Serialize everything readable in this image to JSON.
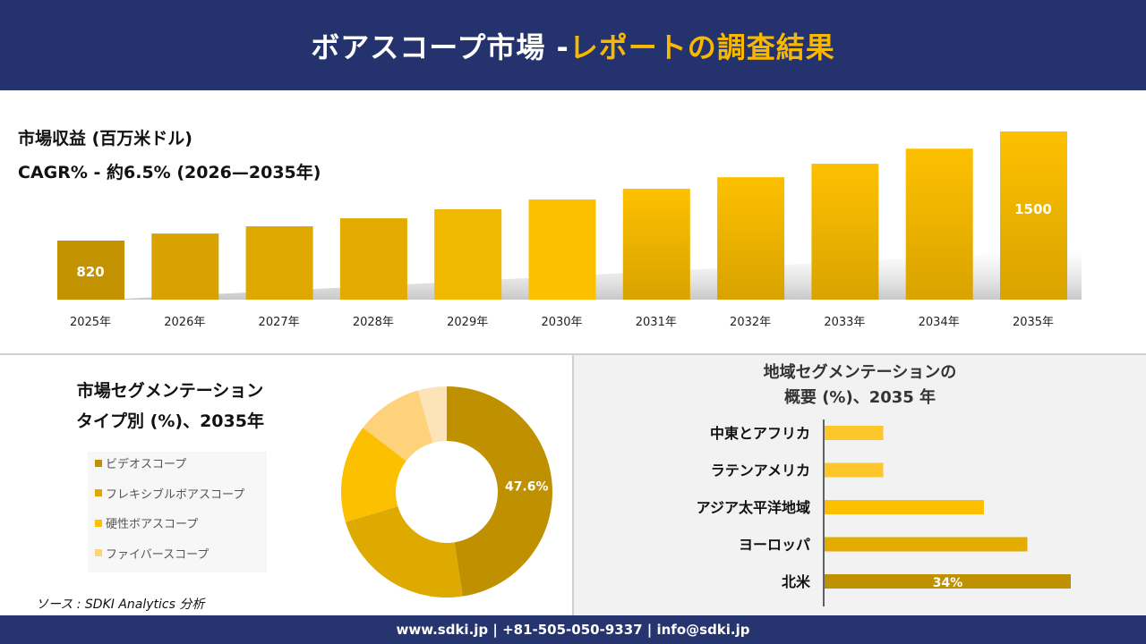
{
  "header": {
    "title_main": "ボアスコープ市場 -",
    "title_accent": "レポートの調査結果"
  },
  "colors": {
    "navy": "#24336d",
    "accent": "#f9b800"
  },
  "revenue": {
    "title": "市場収益 (百万米ドル)",
    "cagr": "CAGR% - 約6.5% (2026—2035年)"
  },
  "chart_data": [
    {
      "type": "bar",
      "title": "市場収益 (百万米ドル)",
      "categories": [
        "2025年",
        "2026年",
        "2027年",
        "2028年",
        "2029年",
        "2030年",
        "2031年",
        "2032年",
        "2033年",
        "2034年",
        "2035年"
      ],
      "values": [
        820,
        864,
        909,
        959,
        1015,
        1076,
        1143,
        1215,
        1299,
        1393,
        1500
      ],
      "data_labels": {
        "2025年": "820",
        "2035年": "1500"
      },
      "ylim": [
        450,
        1500
      ],
      "grid": false,
      "colors": [
        "#c29200",
        "#d8a200",
        "#dea800",
        "#e3ab00",
        "#f0b800",
        "#fdc000",
        "#f5b900",
        "#f5b900",
        "#f5b900",
        "#f5b900",
        "#f5b900"
      ]
    },
    {
      "type": "pie",
      "donut": true,
      "title": "市場セグメンテーション タイプ別 (%)、2035年",
      "labels": [
        "ビデオスコープ",
        "フレキシブルボアスコープ",
        "硬性ボアスコープ",
        "ファイバースコープ",
        ""
      ],
      "values": [
        47.6,
        22.8,
        15.0,
        10.2,
        4.4
      ],
      "data_labels": [
        "47.6%",
        "",
        "",
        "",
        ""
      ],
      "colors": [
        "#bf9000",
        "#deaa00",
        "#fcc000",
        "#fdd27a",
        "#fde3b8"
      ],
      "legend": "left"
    },
    {
      "type": "bar",
      "orientation": "horizontal",
      "title": "地域セグメンテーションの 概要 (%)、2035 年",
      "categories": [
        "中東とアフリカ",
        "ラテンアメリカ",
        "アジア太平洋地域",
        "ヨーロッパ",
        "北米"
      ],
      "values": [
        8.1,
        8.1,
        22,
        28,
        34
      ],
      "data_labels": [
        "",
        "",
        "",
        "",
        "34%"
      ],
      "colors": [
        "#fdc62b",
        "#fdc62b",
        "#fcc000",
        "#e3ab00",
        "#bf9000"
      ],
      "xlim": [
        0,
        34
      ]
    }
  ],
  "segment": {
    "title_line1": "市場セグメンテーション",
    "title_line2": "タイプ別 (%)、2035年"
  },
  "region": {
    "title_line1": "地域セグメンテーションの",
    "title_line2": "概要 (%)、2035 年"
  },
  "source": "ソース : SDKI Analytics 分析",
  "footer": "www.sdki.jp | +81-505-050-9337 | info@sdki.jp"
}
